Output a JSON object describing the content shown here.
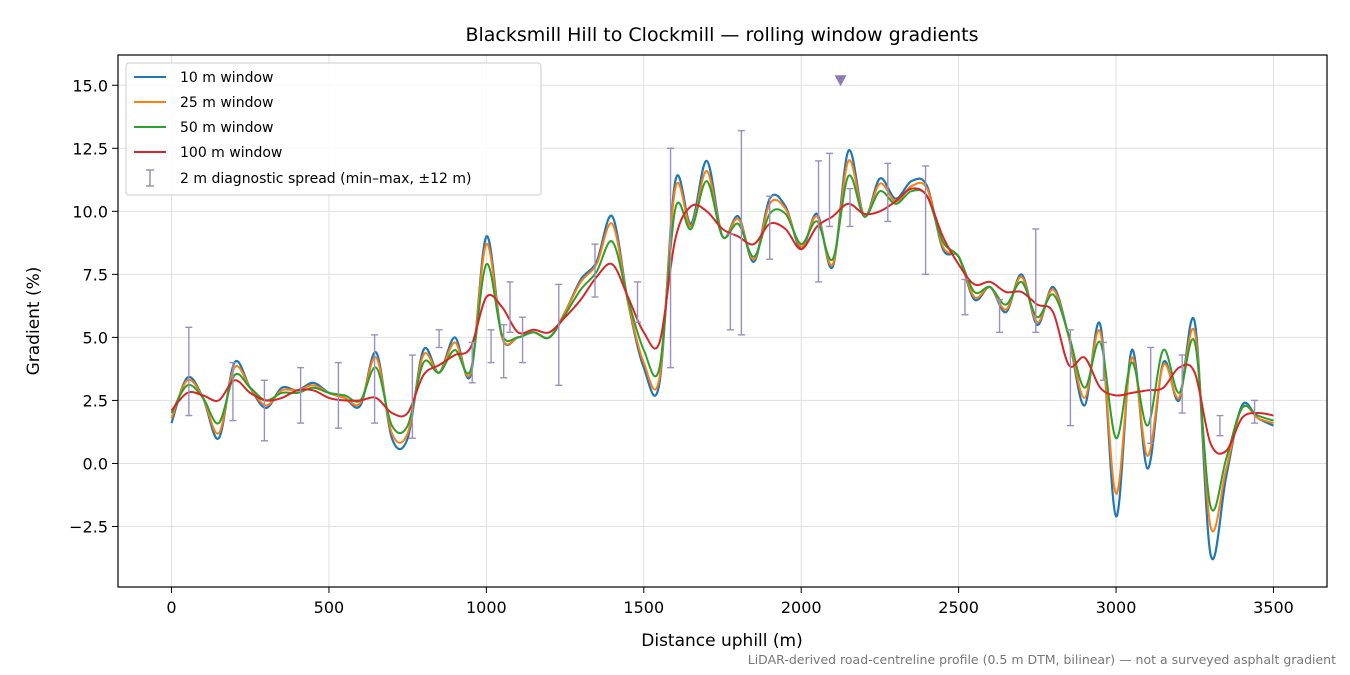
{
  "chart_data": {
    "type": "line",
    "title": "Blacksmill Hill to Clockmill — rolling window gradients",
    "xlabel": "Distance uphill (m)",
    "ylabel": "Gradient (%)",
    "xlim": [
      -170,
      3670
    ],
    "ylim": [
      -4.9,
      16.2
    ],
    "xticks": [
      0,
      500,
      1000,
      1500,
      2000,
      2500,
      3000,
      3500
    ],
    "xtick_labels": [
      "0",
      "500",
      "1000",
      "1500",
      "2000",
      "2500",
      "3000",
      "3500"
    ],
    "yticks": [
      -2.5,
      0.0,
      2.5,
      5.0,
      7.5,
      10.0,
      12.5,
      15.0
    ],
    "ytick_labels": [
      "−2.5",
      "0.0",
      "2.5",
      "5.0",
      "7.5",
      "10.0",
      "12.5",
      "15.0"
    ],
    "grid": true,
    "legend_position": "top-left",
    "footnote": "LiDAR-derived road-centreline profile (0.5 m DTM, bilinear) — not a surveyed asphalt gradient",
    "x": [
      0,
      50,
      100,
      150,
      200,
      250,
      300,
      350,
      400,
      450,
      500,
      550,
      600,
      650,
      700,
      750,
      800,
      850,
      900,
      950,
      1000,
      1050,
      1100,
      1150,
      1200,
      1250,
      1300,
      1350,
      1400,
      1450,
      1500,
      1550,
      1600,
      1650,
      1700,
      1750,
      1800,
      1850,
      1900,
      1950,
      2000,
      2050,
      2100,
      2150,
      2200,
      2250,
      2300,
      2350,
      2400,
      2450,
      2500,
      2550,
      2600,
      2650,
      2700,
      2750,
      2800,
      2850,
      2900,
      2950,
      3000,
      3050,
      3100,
      3150,
      3200,
      3250,
      3300,
      3350,
      3400,
      3450,
      3500
    ],
    "series": [
      {
        "name": "10 m window",
        "color": "#1f77b4",
        "values": [
          1.6,
          3.4,
          2.6,
          1.0,
          4.0,
          3.0,
          2.2,
          3.0,
          2.9,
          3.2,
          2.8,
          2.6,
          2.3,
          4.4,
          1.0,
          1.0,
          4.5,
          3.6,
          5.0,
          3.5,
          9.0,
          5.0,
          5.0,
          5.2,
          5.0,
          6.0,
          7.3,
          8.0,
          9.8,
          6.4,
          3.8,
          3.2,
          11.2,
          9.5,
          12.0,
          9.0,
          9.8,
          8.0,
          10.5,
          10.2,
          8.5,
          9.9,
          7.8,
          12.4,
          9.8,
          11.3,
          10.5,
          11.2,
          11.0,
          8.5,
          8.2,
          6.5,
          7.0,
          6.0,
          7.5,
          5.5,
          7.0,
          5.0,
          2.3,
          5.5,
          -2.1,
          4.5,
          -0.2,
          4.0,
          2.5,
          5.6,
          -3.6,
          -0.5,
          2.3,
          1.8,
          1.5
        ]
      },
      {
        "name": "25 m window",
        "color": "#ff7f0e",
        "values": [
          1.8,
          3.3,
          2.6,
          1.2,
          3.8,
          3.0,
          2.3,
          2.9,
          2.9,
          3.1,
          2.8,
          2.6,
          2.4,
          4.2,
          1.2,
          1.2,
          4.3,
          3.6,
          4.8,
          3.6,
          8.7,
          5.0,
          5.0,
          5.2,
          5.0,
          6.0,
          7.2,
          7.9,
          9.5,
          6.4,
          4.0,
          3.4,
          10.9,
          9.4,
          11.6,
          9.0,
          9.7,
          8.1,
          10.3,
          10.1,
          8.6,
          9.8,
          7.9,
          12.0,
          9.8,
          11.1,
          10.4,
          11.0,
          10.9,
          8.6,
          8.2,
          6.6,
          7.0,
          6.1,
          7.4,
          5.6,
          6.9,
          5.0,
          2.6,
          5.2,
          -1.2,
          4.2,
          0.3,
          3.9,
          2.6,
          5.2,
          -2.5,
          -0.2,
          2.2,
          1.8,
          1.6
        ]
      },
      {
        "name": "50 m window",
        "color": "#2ca02c",
        "values": [
          2.0,
          3.1,
          2.6,
          1.6,
          3.5,
          3.0,
          2.5,
          2.8,
          2.8,
          3.0,
          2.8,
          2.7,
          2.5,
          3.8,
          1.5,
          1.5,
          4.0,
          3.6,
          4.5,
          3.7,
          7.9,
          5.1,
          5.0,
          5.2,
          5.0,
          5.9,
          6.9,
          7.6,
          8.8,
          6.5,
          4.5,
          3.8,
          10.1,
          9.3,
          11.2,
          9.0,
          9.5,
          8.2,
          9.9,
          9.9,
          8.7,
          9.6,
          8.1,
          11.4,
          9.8,
          10.8,
          10.3,
          10.8,
          10.6,
          8.8,
          8.2,
          6.8,
          7.0,
          6.3,
          7.2,
          5.8,
          6.7,
          5.1,
          3.0,
          4.8,
          1.0,
          4.0,
          1.5,
          4.5,
          2.8,
          4.8,
          -1.7,
          0.2,
          2.2,
          1.9,
          1.7
        ]
      },
      {
        "name": "100 m window",
        "color": "#d62728",
        "values": [
          2.1,
          2.8,
          2.7,
          2.5,
          3.3,
          2.8,
          2.5,
          2.6,
          2.9,
          2.9,
          2.6,
          2.5,
          2.5,
          2.6,
          2.0,
          2.0,
          3.5,
          3.9,
          4.3,
          4.6,
          6.6,
          6.2,
          5.2,
          5.3,
          5.2,
          5.8,
          6.5,
          7.4,
          7.9,
          6.6,
          5.2,
          4.8,
          8.9,
          10.2,
          10.0,
          9.3,
          9.0,
          8.7,
          9.5,
          9.3,
          8.5,
          9.4,
          9.8,
          10.3,
          9.9,
          10.0,
          10.4,
          10.9,
          10.6,
          9.0,
          7.9,
          7.1,
          7.2,
          6.8,
          6.8,
          6.3,
          6.0,
          3.9,
          4.2,
          3.0,
          2.7,
          2.8,
          2.9,
          3.0,
          3.8,
          3.6,
          0.8,
          0.5,
          1.8,
          2.0,
          1.9
        ]
      }
    ],
    "errorbars": {
      "name": "2 m diagnostic spread (min–max, ±12 m)",
      "color": "#9b8fbf",
      "points": [
        {
          "x": 55,
          "low": 1.9,
          "high": 5.4
        },
        {
          "x": 195,
          "low": 1.7,
          "high": 4.0
        },
        {
          "x": 295,
          "low": 0.9,
          "high": 3.3
        },
        {
          "x": 410,
          "low": 1.6,
          "high": 3.8
        },
        {
          "x": 530,
          "low": 1.4,
          "high": 4.0
        },
        {
          "x": 645,
          "low": 1.6,
          "high": 5.1
        },
        {
          "x": 765,
          "low": 1.0,
          "high": 4.3
        },
        {
          "x": 850,
          "low": 4.6,
          "high": 5.3
        },
        {
          "x": 955,
          "low": 3.2,
          "high": 4.8
        },
        {
          "x": 1015,
          "low": 4.0,
          "high": 5.3
        },
        {
          "x": 1055,
          "low": 3.4,
          "high": 5.5
        },
        {
          "x": 1075,
          "low": 5.2,
          "high": 7.2
        },
        {
          "x": 1115,
          "low": 4.0,
          "high": 5.8
        },
        {
          "x": 1230,
          "low": 3.1,
          "high": 7.1
        },
        {
          "x": 1345,
          "low": 6.6,
          "high": 8.7
        },
        {
          "x": 1480,
          "low": 5.6,
          "high": 7.2
        },
        {
          "x": 1585,
          "low": 3.8,
          "high": 12.5
        },
        {
          "x": 1775,
          "low": 5.3,
          "high": 9.1
        },
        {
          "x": 1810,
          "low": 5.1,
          "high": 13.2
        },
        {
          "x": 1900,
          "low": 8.1,
          "high": 10.6
        },
        {
          "x": 2055,
          "low": 7.2,
          "high": 12.0
        },
        {
          "x": 2090,
          "low": 9.4,
          "high": 12.3
        },
        {
          "x": 2155,
          "low": 9.4,
          "high": 10.9
        },
        {
          "x": 2275,
          "low": 9.6,
          "high": 11.9
        },
        {
          "x": 2395,
          "low": 7.5,
          "high": 11.8
        },
        {
          "x": 2520,
          "low": 5.9,
          "high": 7.3
        },
        {
          "x": 2630,
          "low": 5.2,
          "high": 6.5
        },
        {
          "x": 2745,
          "low": 5.2,
          "high": 9.3
        },
        {
          "x": 2855,
          "low": 1.5,
          "high": 5.3
        },
        {
          "x": 2960,
          "low": 3.3,
          "high": 4.8
        },
        {
          "x": 3110,
          "low": 0.8,
          "high": 4.6
        },
        {
          "x": 3210,
          "low": 2.0,
          "high": 4.3
        },
        {
          "x": 3330,
          "low": 1.1,
          "high": 1.9
        },
        {
          "x": 3440,
          "low": 1.6,
          "high": 2.5
        }
      ]
    },
    "marker": {
      "x": 2125,
      "y": 15.2,
      "color": "#8c7bb5"
    }
  }
}
